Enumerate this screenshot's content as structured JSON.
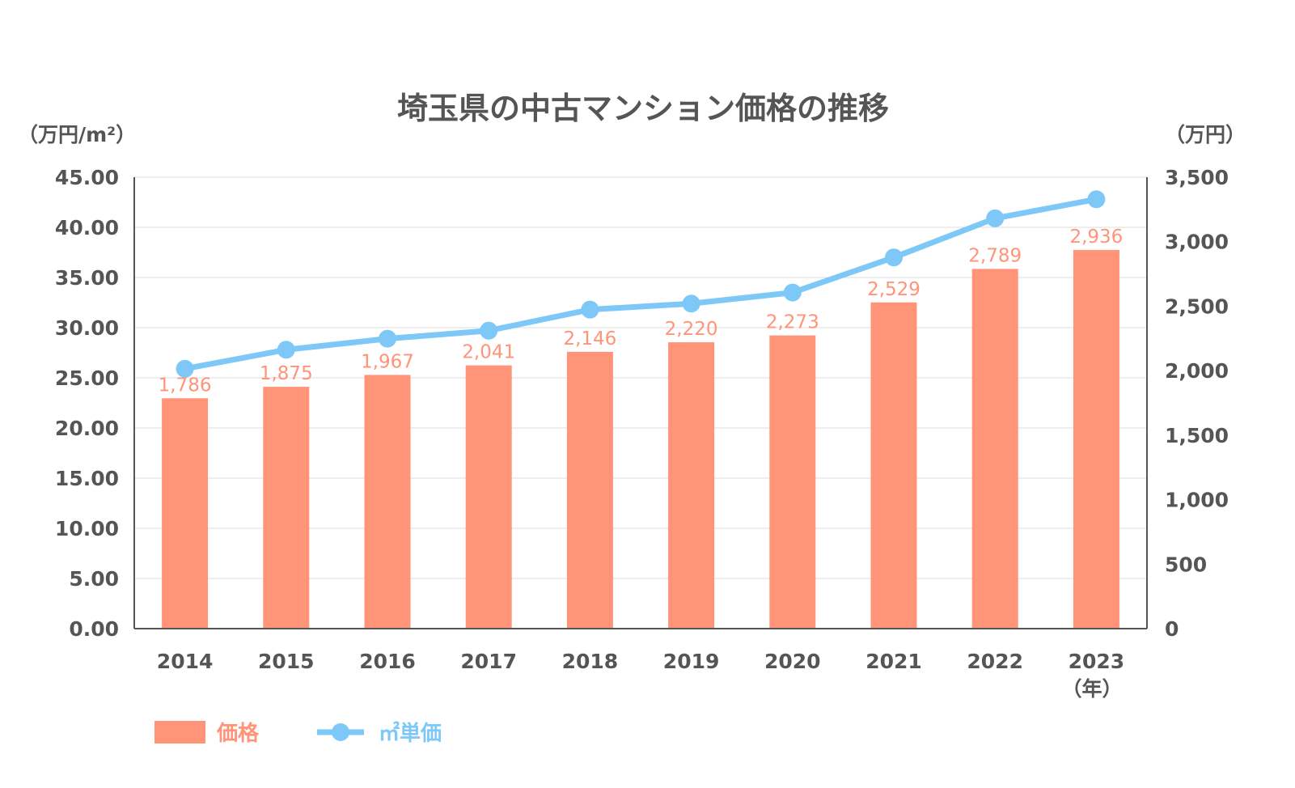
{
  "chart_data": {
    "type": "bar",
    "title": "埼玉県の中古マンション価格の推移",
    "left_axis_label": "（万円/m²）",
    "right_axis_label": "（万円）",
    "x_unit_label": "（年）",
    "categories": [
      "2014",
      "2015",
      "2016",
      "2017",
      "2018",
      "2019",
      "2020",
      "2021",
      "2022",
      "2023"
    ],
    "left_ticks": [
      "45.00",
      "40.00",
      "35.00",
      "30.00",
      "25.00",
      "20.00",
      "15.00",
      "10.00",
      "5.00",
      "0.00"
    ],
    "right_ticks": [
      "3,500",
      "3,000",
      "2,500",
      "2,000",
      "1,500",
      "1,000",
      "500",
      "0"
    ],
    "left_ylim": [
      0,
      45
    ],
    "right_ylim": [
      0,
      3500
    ],
    "grid": true,
    "legend_position": "bottom-left",
    "series": [
      {
        "name": "価格",
        "type": "bar",
        "axis": "right",
        "color": "#ff9478",
        "values": [
          1786,
          1875,
          1967,
          2041,
          2146,
          2220,
          2273,
          2529,
          2789,
          2936
        ],
        "labels": [
          "1,786",
          "1,875",
          "1,967",
          "2,041",
          "2,146",
          "2,220",
          "2,273",
          "2,529",
          "2,789",
          "2,936"
        ]
      },
      {
        "name": "㎡単価",
        "type": "line",
        "axis": "left",
        "color": "#7ec8f7",
        "values": [
          25.9,
          27.8,
          28.9,
          29.7,
          31.8,
          32.4,
          33.5,
          37.0,
          40.9,
          42.8
        ]
      }
    ]
  }
}
